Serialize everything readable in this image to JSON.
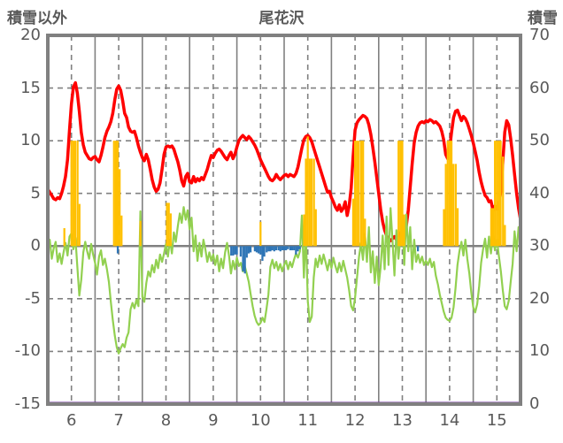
{
  "header": {
    "left_axis_title": "積雪以外",
    "title": "尾花沢",
    "right_axis_title": "積雪"
  },
  "colors": {
    "text": "#595959",
    "grid": "#808080",
    "border": "#808080",
    "red_line": "#FF0000",
    "green_line": "#92D050",
    "orange_bar": "#FFC000",
    "blue_bar": "#2E75B6",
    "purple_line": "#7030A0",
    "background": "#FFFFFF"
  },
  "chart_data": {
    "type": "line+bar",
    "title": "尾花沢",
    "left_axis": {
      "title": "積雪以外",
      "min": -15,
      "max": 20,
      "ticks": [
        20,
        15,
        10,
        5,
        0,
        -5,
        -10,
        -15
      ]
    },
    "right_axis": {
      "title": "積雪",
      "min": 0,
      "max": 70,
      "ticks": [
        70,
        60,
        50,
        40,
        30,
        20,
        10,
        0
      ]
    },
    "x_axis": {
      "min": 5.5,
      "max": 15.5,
      "tick_positions": [
        6,
        7,
        8,
        9,
        10,
        11,
        12,
        13,
        14,
        15
      ],
      "tick_labels": [
        "6",
        "7",
        "8",
        "9",
        "10",
        "11",
        "12",
        "13",
        "14",
        "15"
      ],
      "day_boundaries": [
        6.5,
        7.5,
        8.5,
        9.5,
        10.5,
        11.5,
        12.5,
        13.5,
        14.5
      ]
    },
    "grid": {
      "h_dashed_at": [
        15,
        10,
        5,
        -5,
        -10
      ],
      "zero_line_at": 0
    },
    "series": [
      {
        "name": "red-line",
        "type": "line",
        "color": "#FF0000",
        "stroke_width": 3.5,
        "x_start": 5.5,
        "step_days": 0.0416667,
        "values": [
          5.4,
          5.1,
          4.8,
          4.5,
          4.4,
          4.6,
          4.5,
          5.0,
          5.7,
          6.6,
          8.2,
          11.0,
          13.5,
          15.1,
          15.5,
          14.5,
          12.8,
          10.8,
          9.6,
          8.9,
          8.6,
          8.3,
          8.2,
          8.4,
          8.5,
          8.2,
          8.0,
          8.6,
          9.4,
          10.3,
          10.9,
          11.3,
          11.8,
          12.6,
          13.9,
          14.9,
          15.2,
          14.8,
          13.8,
          12.6,
          12.2,
          11.3,
          10.9,
          10.8,
          10.9,
          10.3,
          9.5,
          8.9,
          8.4,
          8.1,
          8.7,
          8.2,
          7.3,
          6.3,
          5.6,
          5.2,
          5.4,
          6.0,
          7.3,
          8.7,
          9.4,
          9.5,
          9.4,
          9.5,
          9.2,
          8.6,
          8.0,
          7.2,
          6.2,
          5.7,
          6.6,
          6.9,
          6.1,
          6.0,
          6.6,
          6.1,
          6.4,
          6.2,
          6.5,
          6.3,
          6.8,
          7.3,
          8.0,
          8.6,
          8.4,
          8.8,
          9.1,
          9.2,
          9.0,
          8.7,
          8.4,
          8.2,
          8.6,
          8.9,
          8.3,
          8.7,
          9.4,
          10.0,
          10.3,
          10.5,
          10.3,
          10.1,
          10.4,
          10.2,
          9.9,
          9.6,
          9.2,
          8.7,
          8.2,
          7.8,
          7.4,
          7.0,
          6.6,
          6.3,
          6.2,
          6.4,
          6.8,
          6.5,
          6.3,
          6.5,
          6.7,
          6.8,
          6.6,
          6.8,
          6.7,
          6.6,
          6.9,
          7.5,
          8.4,
          9.3,
          10.1,
          10.4,
          10.5,
          10.3,
          9.9,
          9.3,
          8.7,
          8.1,
          7.5,
          6.9,
          6.3,
          5.7,
          5.1,
          5.2,
          4.6,
          4.2,
          3.7,
          3.4,
          3.9,
          3.3,
          3.6,
          4.2,
          2.9,
          3.8,
          5.5,
          8.5,
          11.0,
          11.7,
          12.0,
          12.2,
          12.4,
          12.3,
          12.1,
          11.5,
          10.6,
          9.4,
          8.0,
          6.5,
          5.0,
          3.5,
          2.3,
          1.5,
          1.0,
          0.7,
          0.5,
          0.7,
          0.9,
          0.6,
          0.8,
          1.2,
          1.7,
          1.1,
          1.9,
          3.4,
          5.6,
          7.8,
          9.8,
          10.8,
          11.4,
          11.7,
          11.8,
          11.7,
          11.9,
          11.8,
          12.0,
          11.9,
          11.7,
          11.8,
          11.6,
          11.4,
          10.9,
          10.1,
          8.7,
          8.3,
          9.2,
          10.8,
          12.2,
          12.8,
          12.9,
          12.4,
          11.9,
          12.3,
          12.1,
          11.7,
          11.1,
          10.5,
          9.8,
          9.0,
          8.1,
          7.0,
          6.1,
          5.4,
          4.8,
          4.6,
          4.2,
          4.3,
          3.4,
          3.8,
          3.5,
          3.9,
          5.2,
          8.0,
          10.8,
          11.9,
          11.5,
          10.2,
          8.6,
          6.8,
          5.0,
          3.6,
          2.5
        ]
      },
      {
        "name": "green-line",
        "type": "line",
        "color": "#92D050",
        "stroke_width": 2.2,
        "x_start": 5.5,
        "step_days": 0.0416667,
        "values": [
          -0.4,
          0.6,
          -1.2,
          -0.2,
          0.4,
          -1.5,
          -0.7,
          -1.7,
          -0.6,
          0.3,
          -0.9,
          0.9,
          1.2,
          -0.3,
          0.8,
          -2.0,
          -4.7,
          -3.2,
          -0.6,
          0.4,
          -0.5,
          -1.2,
          0.2,
          -0.8,
          -1.6,
          -2.7,
          -1.0,
          -0.4,
          -1.8,
          -1.2,
          -2.2,
          -3.4,
          -5.3,
          -7.0,
          -8.5,
          -9.6,
          -10.2,
          -9.7,
          -9.3,
          -9.6,
          -8.7,
          -8.2,
          -6.0,
          -5.4,
          -5.9,
          -5.1,
          -5.7,
          3.3,
          -4.8,
          -5.3,
          -3.5,
          -2.4,
          -2.9,
          -1.8,
          -2.5,
          -1.3,
          -2.1,
          -0.8,
          -1.5,
          -0.7,
          0.2,
          -1.0,
          0.6,
          -0.7,
          1.3,
          0.4,
          1.9,
          3.1,
          2.2,
          3.7,
          2.5,
          3.4,
          1.6,
          2.7,
          -0.5,
          1.0,
          -1.4,
          0.3,
          -1.0,
          0.6,
          -0.3,
          -1.5,
          -0.6,
          -1.4,
          -0.8,
          -1.8,
          -0.9,
          -2.4,
          -1.2,
          -2.1,
          -0.6,
          0.3,
          -0.9,
          -2.6,
          -1.4,
          -2.2,
          -1.1,
          -1.9,
          -1.6,
          -2.4,
          -1.9,
          -2.6,
          -3.4,
          -4.6,
          -5.7,
          -6.6,
          -7.2,
          -7.5,
          -7.3,
          -6.8,
          -7.2,
          -6.0,
          -4.6,
          -2.0,
          -1.3,
          -2.1,
          -1.5,
          -2.3,
          -1.7,
          -2.4,
          -1.8,
          -1.4,
          -2.2,
          -1.5,
          -2.0,
          -1.3,
          -0.7,
          -1.1,
          -0.5,
          2.9,
          -3.0,
          1.4,
          -5.2,
          -7.2,
          -6.7,
          -3.0,
          -1.2,
          -2.0,
          -0.9,
          -1.7,
          -0.8,
          -1.5,
          -2.3,
          -1.3,
          -2.1,
          -1.1,
          -1.9,
          -2.5,
          -1.6,
          -2.4,
          -1.4,
          -2.2,
          -3.0,
          -4.2,
          -5.7,
          -6.1,
          -4.9,
          -3.0,
          -1.0,
          0.3,
          -1.3,
          1.2,
          -1.5,
          1.8,
          -2.5,
          -0.5,
          -3.5,
          -1.0,
          -3.7,
          -2.0,
          1.0,
          -2.2,
          2.8,
          -1.8,
          3.6,
          0.5,
          -2.8,
          1.5,
          -1.2,
          0.8,
          2.5,
          -1.8,
          3.0,
          -0.5,
          1.8,
          -2.2,
          0.6,
          -1.5,
          -0.8,
          -1.6,
          -1.0,
          -1.8,
          -1.4,
          -1.8,
          -1.2,
          -2.0,
          -1.5,
          -2.8,
          -3.6,
          -4.6,
          -5.4,
          -6.2,
          -6.8,
          -7.0,
          -7.1,
          -6.8,
          -5.8,
          -4.0,
          -1.8,
          -0.5,
          0.4,
          -0.9,
          0.6,
          -1.2,
          -2.6,
          -4.4,
          -5.8,
          -6.3,
          -5.5,
          -3.8,
          -1.6,
          -0.3,
          0.7,
          -1.1,
          0.9,
          -0.7,
          1.1,
          -0.4,
          0.6,
          -0.9,
          -2.4,
          -4.2,
          -5.7,
          -6.0,
          -5.2,
          -3.4,
          -1.7,
          1.4,
          -0.5,
          1.8,
          0.9
        ]
      },
      {
        "name": "orange-bars",
        "type": "bar",
        "color": "#FFC000",
        "points": [
          [
            5.85,
            1.7
          ],
          [
            6.0,
            10
          ],
          [
            6.04,
            10
          ],
          [
            6.08,
            10
          ],
          [
            6.13,
            10
          ],
          [
            6.17,
            4.0
          ],
          [
            6.9,
            10
          ],
          [
            6.94,
            10
          ],
          [
            6.98,
            10
          ],
          [
            7.02,
            7.3
          ],
          [
            7.06,
            2.9
          ],
          [
            7.46,
            2.4
          ],
          [
            8.02,
            4.1
          ],
          [
            8.06,
            4.1
          ],
          [
            8.1,
            3.1
          ],
          [
            10.0,
            2.3
          ],
          [
            10.92,
            3.0
          ],
          [
            10.96,
            8.3
          ],
          [
            11.0,
            10.4
          ],
          [
            11.04,
            8.3
          ],
          [
            11.08,
            8.3
          ],
          [
            11.13,
            8.3
          ],
          [
            11.17,
            3.5
          ],
          [
            11.96,
            4.5
          ],
          [
            12.0,
            10
          ],
          [
            12.04,
            10
          ],
          [
            12.08,
            10
          ],
          [
            12.13,
            10
          ],
          [
            12.17,
            10
          ],
          [
            12.21,
            2.6
          ],
          [
            12.92,
            10
          ],
          [
            12.96,
            10
          ],
          [
            13.0,
            10
          ],
          [
            13.04,
            3.0
          ],
          [
            13.88,
            3.5
          ],
          [
            13.92,
            7.8
          ],
          [
            13.96,
            10
          ],
          [
            14.0,
            10
          ],
          [
            14.04,
            10
          ],
          [
            14.08,
            7.8
          ],
          [
            14.13,
            7.8
          ],
          [
            14.17,
            3.6
          ],
          [
            14.88,
            3.6
          ],
          [
            14.92,
            3.6
          ],
          [
            14.96,
            10
          ],
          [
            15.0,
            10
          ],
          [
            15.04,
            10
          ],
          [
            15.08,
            10
          ],
          [
            15.13,
            8.5
          ],
          [
            15.17,
            2.0
          ]
        ]
      },
      {
        "name": "blue-bars",
        "type": "bar",
        "color": "#2E75B6",
        "points": [
          [
            6.98,
            -0.7
          ],
          [
            9.38,
            -0.9
          ],
          [
            9.42,
            -0.9
          ],
          [
            9.46,
            -0.8
          ],
          [
            9.5,
            -0.8
          ],
          [
            9.58,
            -1.0
          ],
          [
            9.63,
            -2.4
          ],
          [
            9.67,
            -2.6
          ],
          [
            9.71,
            -1.1
          ],
          [
            9.75,
            -0.7
          ],
          [
            9.79,
            -0.6
          ],
          [
            9.88,
            -0.5
          ],
          [
            9.92,
            -0.6
          ],
          [
            9.96,
            -0.7
          ],
          [
            10.0,
            -0.8
          ],
          [
            10.04,
            -1.4
          ],
          [
            10.08,
            -1.0
          ],
          [
            10.13,
            -0.6
          ],
          [
            10.17,
            -0.5
          ],
          [
            10.21,
            -0.5
          ],
          [
            10.25,
            -0.4
          ],
          [
            10.29,
            -0.5
          ],
          [
            10.33,
            -0.4
          ],
          [
            10.38,
            -0.4
          ],
          [
            10.42,
            -0.5
          ],
          [
            10.46,
            -0.4
          ],
          [
            10.5,
            -0.4
          ],
          [
            10.54,
            -0.4
          ],
          [
            10.58,
            -0.3
          ],
          [
            10.63,
            -0.4
          ],
          [
            10.67,
            -0.4
          ],
          [
            10.71,
            -0.4
          ],
          [
            10.75,
            -0.8
          ],
          [
            10.79,
            -0.5
          ],
          [
            10.83,
            -0.3
          ],
          [
            13.33,
            -0.5
          ]
        ]
      },
      {
        "name": "purple-line",
        "type": "hline",
        "color": "#7030A0",
        "stroke_width": 3,
        "value_left_axis": -15,
        "value_right_axis": 0
      }
    ]
  }
}
